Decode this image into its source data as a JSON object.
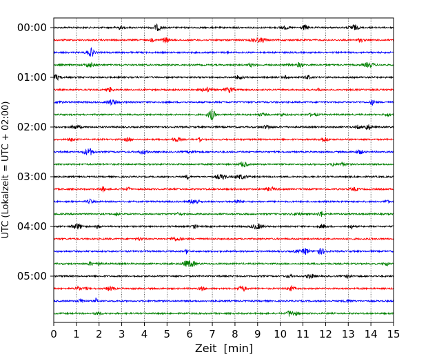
{
  "chart_data": {
    "type": "line",
    "title": "",
    "xlabel": "Zeit  [min]",
    "ylabel": "UTC (Lokalzeit = UTC + 02:00)",
    "xlim": [
      0,
      15
    ],
    "x_ticks": [
      0,
      1,
      2,
      3,
      4,
      5,
      6,
      7,
      8,
      9,
      10,
      11,
      12,
      13,
      14,
      15
    ],
    "y_tick_labels": [
      "00:00",
      "01:00",
      "02:00",
      "03:00",
      "04:00",
      "05:00"
    ],
    "minutes_per_trace": 15,
    "trace_count": 24,
    "trace_colors": [
      "#000000",
      "#ff0000",
      "#0000ff",
      "#008000"
    ],
    "grid": "vertical dotted at every minute",
    "legend": "none",
    "series_note": ""
  }
}
